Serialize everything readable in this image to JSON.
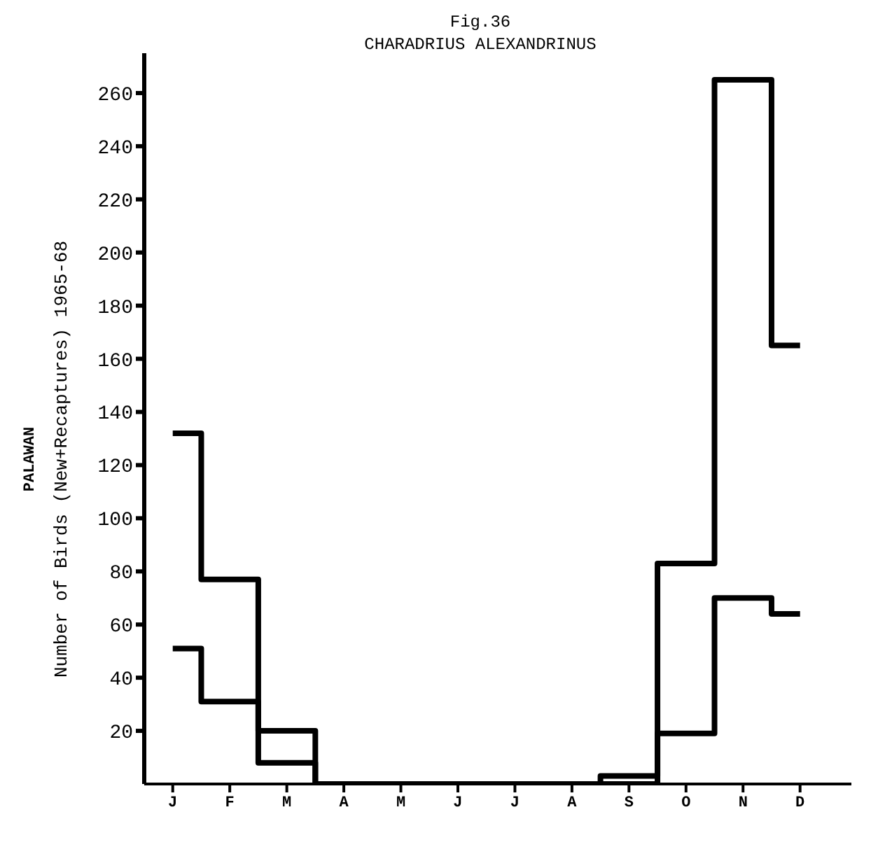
{
  "chart_data": {
    "type": "step",
    "title": "Fig.36",
    "subtitle": "CHARADRIUS ALEXANDRINUS",
    "ylabel": "Number of Birds (New+Recaptures) 1965-68",
    "annotations": [
      "PALAWAN"
    ],
    "categories": [
      "J",
      "F",
      "M",
      "A",
      "M",
      "J",
      "J",
      "A",
      "S",
      "O",
      "N",
      "D"
    ],
    "series": [
      {
        "color": "#000000",
        "values": [
          132,
          77,
          20,
          0,
          0,
          0,
          0,
          0,
          3,
          83,
          265,
          165
        ]
      },
      {
        "color": "#000000",
        "values": [
          51,
          31,
          8,
          0,
          0,
          0,
          0,
          0,
          0,
          19,
          70,
          64
        ]
      }
    ],
    "ylim": [
      0,
      275
    ],
    "yticks": [
      20,
      40,
      60,
      80,
      100,
      120,
      140,
      160,
      180,
      200,
      220,
      240,
      260
    ],
    "grid": false,
    "legend": false,
    "marker": "none",
    "line_style": "solid"
  }
}
